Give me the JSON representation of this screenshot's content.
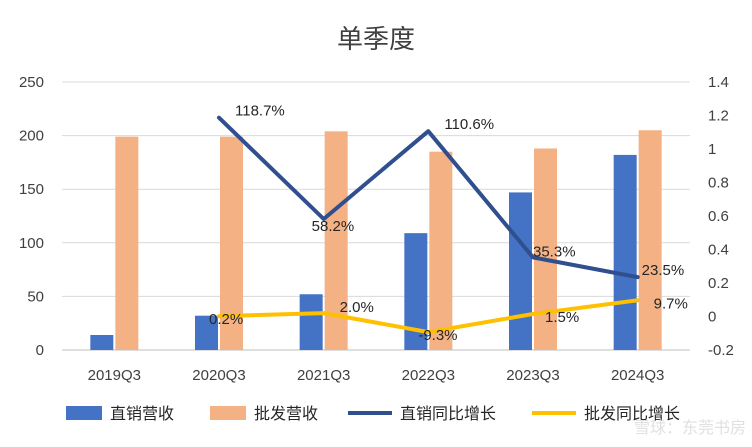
{
  "chart_data": {
    "type": "bar",
    "title": "单季度",
    "categories": [
      "2019Q3",
      "2020Q3",
      "2021Q3",
      "2022Q3",
      "2023Q3",
      "2024Q3"
    ],
    "series": [
      {
        "name": "直销营收",
        "kind": "bar",
        "axis": "left",
        "color": "#4472C4",
        "values": [
          14,
          32,
          52,
          109,
          147,
          182
        ]
      },
      {
        "name": "批发营收",
        "kind": "bar",
        "axis": "left",
        "color": "#F4B183",
        "values": [
          199,
          199,
          204,
          185,
          188,
          205
        ]
      },
      {
        "name": "直销同比增长",
        "kind": "line",
        "axis": "right",
        "color": "#2F4F8F",
        "values": [
          null,
          1.187,
          0.582,
          1.106,
          0.353,
          0.235
        ],
        "labels": [
          "",
          "118.7%",
          "58.2%",
          "110.6%",
          "35.3%",
          "23.5%"
        ]
      },
      {
        "name": "批发同比增长",
        "kind": "line",
        "axis": "right",
        "color": "#FFC000",
        "values": [
          null,
          0.002,
          0.02,
          -0.093,
          0.015,
          0.097
        ],
        "labels": [
          "",
          "0.2%",
          "2.0%",
          "-9.3%",
          "1.5%",
          "9.7%"
        ]
      }
    ],
    "y_left": {
      "min": 0,
      "max": 250,
      "ticks": [
        "0",
        "50",
        "100",
        "150",
        "200",
        "250"
      ]
    },
    "y_right": {
      "min": -0.2,
      "max": 1.4,
      "ticks": [
        "-0.2",
        "0",
        "0.2",
        "0.4",
        "0.6",
        "0.8",
        "1",
        "1.2",
        "1.4"
      ]
    },
    "grid": true,
    "legend_position": "bottom"
  },
  "watermark": "雪球：东莞书房"
}
